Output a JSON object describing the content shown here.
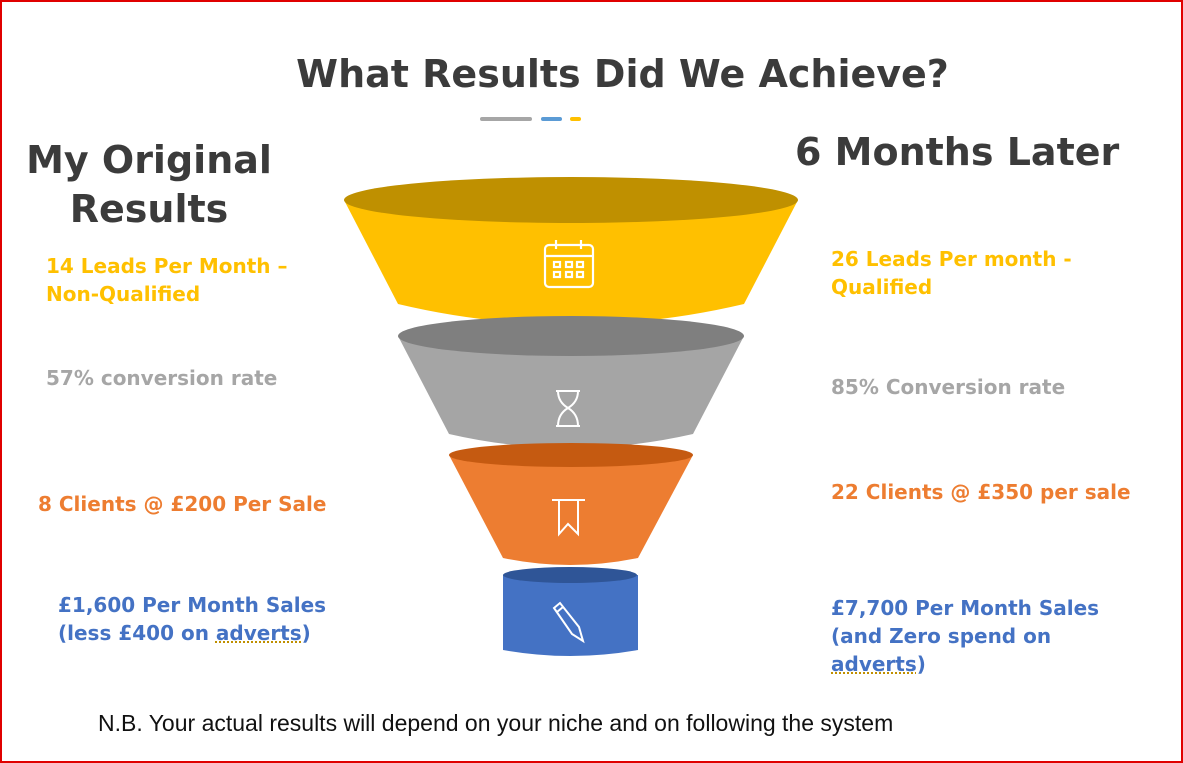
{
  "title": "What Results Did We Achieve?",
  "left": {
    "heading_line1": "My Original",
    "heading_line2": "Results",
    "items": [
      {
        "line1": "14 Leads Per Month –",
        "line2": "Non-Qualified"
      },
      {
        "line1": "57% conversion rate"
      },
      {
        "line1": "8 Clients @ £200 Per Sale"
      },
      {
        "line1": "£1,600 Per Month Sales",
        "line2a": "(less £400 on ",
        "line2b": "adverts",
        "line2c": ")"
      }
    ]
  },
  "right": {
    "heading": "6 Months Later",
    "items": [
      {
        "line1": "26  Leads Per month -",
        "line2": "Qualified"
      },
      {
        "line1": "85% Conversion rate"
      },
      {
        "line1": "22  Clients @ £350 per sale"
      },
      {
        "line1": "£7,700 Per Month Sales",
        "line2": "(and Zero spend on",
        "line3a": "adverts",
        "line3b": ")"
      }
    ]
  },
  "funnel": [
    {
      "stage": 1,
      "icon": "calendar-icon",
      "color": "#ffc000",
      "top_color": "#bf9000"
    },
    {
      "stage": 2,
      "icon": "hourglass-icon",
      "color": "#a5a5a5",
      "top_color": "#7f7f7f"
    },
    {
      "stage": 3,
      "icon": "bookmark-icon",
      "color": "#ed7d31",
      "top_color": "#c55a11"
    },
    {
      "stage": 4,
      "icon": "pencil-icon",
      "color": "#4472c4",
      "top_color": "#2f5597"
    }
  ],
  "note": "N.B. Your actual results will depend on your niche and on following the system"
}
